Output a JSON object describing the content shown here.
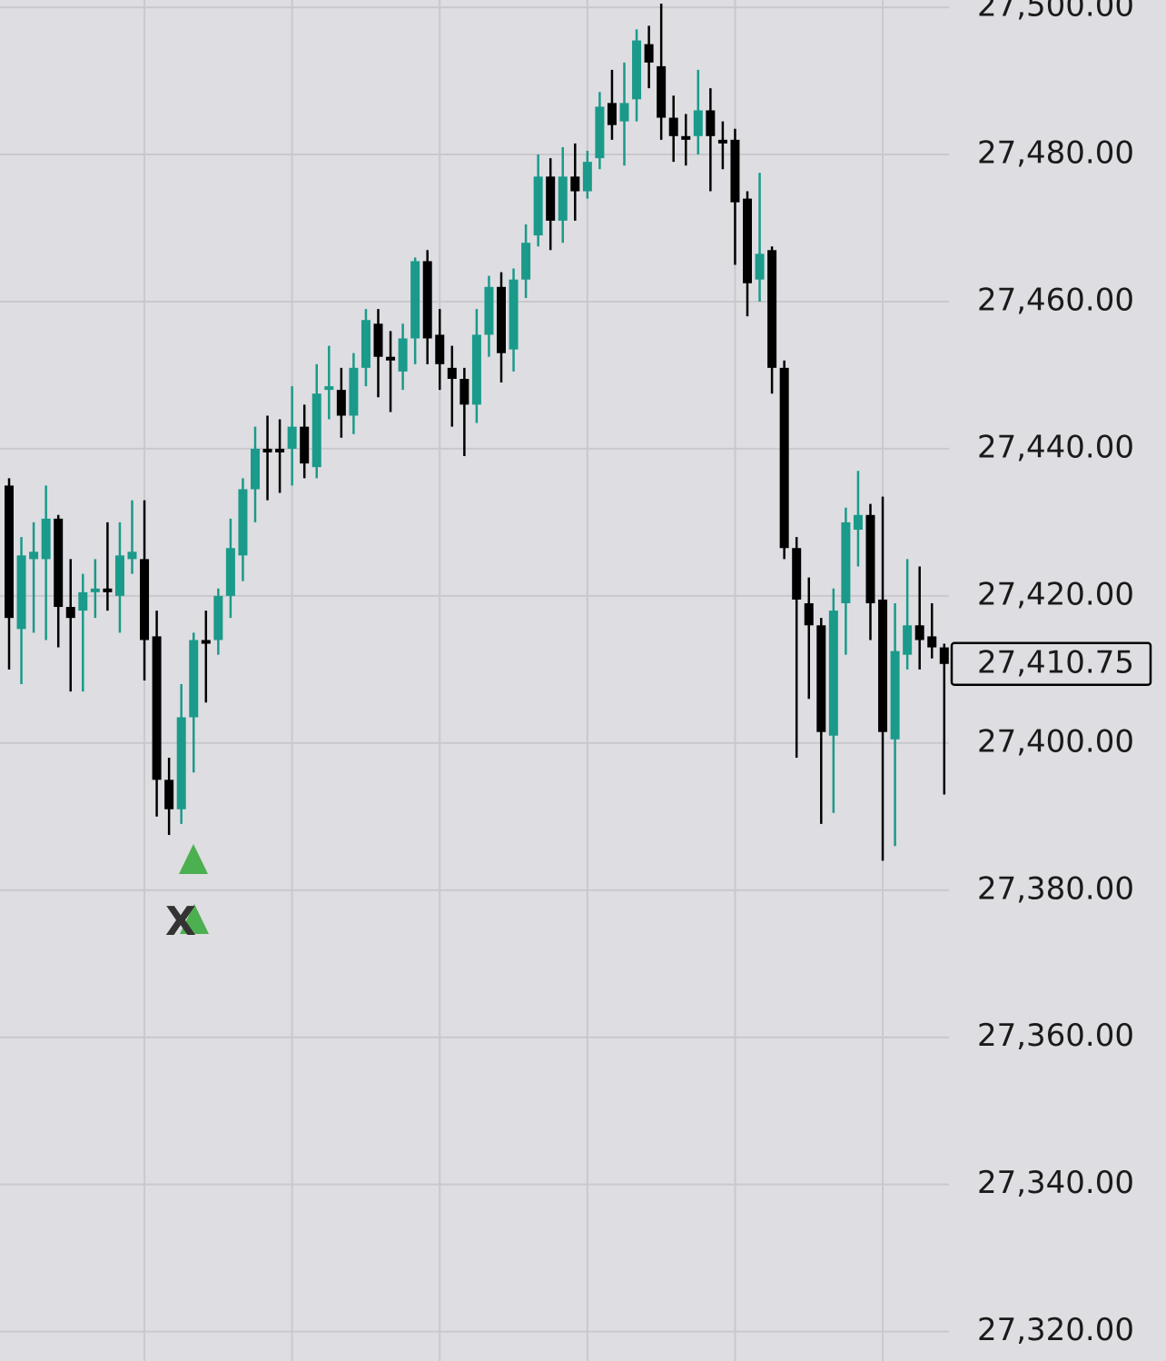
{
  "chart_data": {
    "type": "candlestick",
    "up_color": "#1a9a8a",
    "down_color": "#000000",
    "grid": true,
    "ylim": [
      27316,
      27501
    ],
    "yticks": [
      {
        "value": 27500,
        "label": "27,500.00"
      },
      {
        "value": 27480,
        "label": "27,480.00"
      },
      {
        "value": 27460,
        "label": "27,460.00"
      },
      {
        "value": 27440,
        "label": "27,440.00"
      },
      {
        "value": 27420,
        "label": "27,420.00"
      },
      {
        "value": 27400,
        "label": "27,400.00"
      },
      {
        "value": 27380,
        "label": "27,380.00"
      },
      {
        "value": 27360,
        "label": "27,360.00"
      },
      {
        "value": 27340,
        "label": "27,340.00"
      },
      {
        "value": 27320,
        "label": "27,320.00"
      }
    ],
    "current_price": {
      "value": 27410.75,
      "label": "27,410.75"
    },
    "marker_text": "X",
    "open": [
      27435,
      27415.5,
      27425,
      27425,
      27430.5,
      27418.5,
      27418,
      27420.5,
      27421,
      27420,
      27425,
      27425,
      27414.5,
      27395,
      27391,
      27403.5,
      27414,
      27414,
      27420,
      27425.5,
      27434.5,
      27440,
      27440,
      27440,
      27443,
      27437.5,
      27448,
      27448,
      27444.5,
      27451,
      27457,
      27452.5,
      27450.5,
      27455,
      27465.5,
      27455.5,
      27451,
      27449.5,
      27446,
      27455.5,
      27462,
      27453.5,
      27463,
      27469,
      27477,
      27471,
      27477,
      27475,
      27479.5,
      27487,
      27484.5,
      27487.5,
      27495,
      27492,
      27485,
      27482.5,
      27482.5,
      27486,
      27482,
      27482,
      27474,
      27463,
      27467,
      27451,
      27426.5,
      27419,
      27416,
      27401,
      27419,
      27429,
      27431,
      27419.5,
      27400.5,
      27412,
      27416,
      27414.5,
      27413
    ],
    "high": [
      27436,
      27428,
      27430,
      27435,
      27431,
      27425,
      27423,
      27425,
      27430,
      27430,
      27433,
      27433,
      27418,
      27398,
      27408,
      27415,
      27418,
      27421,
      27430.5,
      27436,
      27443,
      27444.5,
      27444,
      27448.5,
      27446,
      27451.5,
      27454,
      27451,
      27453,
      27459,
      27459,
      27456,
      27457,
      27466,
      27467,
      27459,
      27454,
      27451,
      27459,
      27463.5,
      27464,
      27464.5,
      27470.5,
      27480,
      27479.5,
      27481,
      27481.5,
      27480.5,
      27488.5,
      27491.5,
      27492.5,
      27497,
      27497.5,
      27500.5,
      27488,
      27485.5,
      27491.5,
      27489,
      27484.5,
      27483.5,
      27475,
      27477.5,
      27467.5,
      27452,
      27428,
      27422.5,
      27417,
      27421,
      27432,
      27437,
      27432.5,
      27433.5,
      27419,
      27425,
      27424,
      27419,
      27413.5
    ],
    "low": [
      27410,
      27408,
      27415,
      27414,
      27413,
      27407,
      27407,
      27417,
      27418,
      27415,
      27423,
      27408.5,
      27390,
      27387.5,
      27389,
      27396,
      27405.5,
      27412,
      27417,
      27422,
      27430,
      27433,
      27434,
      27435,
      27436,
      27436,
      27444,
      27441.5,
      27442,
      27448.5,
      27447,
      27445,
      27448,
      27451.5,
      27451.5,
      27448,
      27443,
      27439,
      27443.5,
      27452.5,
      27449,
      27450.5,
      27460.5,
      27467.5,
      27467,
      27468,
      27471,
      27474,
      27478,
      27482,
      27478.5,
      27484.5,
      27489,
      27482,
      27479,
      27478.5,
      27480,
      27475,
      27478,
      27465,
      27458,
      27460,
      27447.5,
      27425,
      27398,
      27406,
      27389,
      27390.5,
      27412,
      27424,
      27414,
      27384,
      27386,
      27410,
      27410,
      27411.5,
      27393
    ],
    "close": [
      27417,
      27425.5,
      27426,
      27430.5,
      27418.5,
      27417,
      27420.5,
      27421,
      27420.5,
      27425.5,
      27426,
      27414,
      27395,
      27391,
      27403.5,
      27414,
      27413.5,
      27420,
      27426.5,
      27434.5,
      27440,
      27439.5,
      27439.5,
      27443,
      27438,
      27447.5,
      27448.5,
      27444.5,
      27451,
      27457.5,
      27452.5,
      27452,
      27455,
      27465.5,
      27455,
      27451.5,
      27449.5,
      27446,
      27455.5,
      27462,
      27453,
      27463,
      27468,
      27477,
      27471,
      27477,
      27475,
      27479,
      27486.5,
      27484,
      27487,
      27495.5,
      27492.5,
      27485,
      27482.5,
      27482,
      27486,
      27482.5,
      27481.5,
      27473.5,
      27462.5,
      27466.5,
      27451,
      27426.5,
      27419.5,
      27416,
      27401.5,
      27418,
      27430,
      27431,
      27419,
      27401.5,
      27412.5,
      27416,
      27414,
      27413,
      27410.75
    ]
  }
}
